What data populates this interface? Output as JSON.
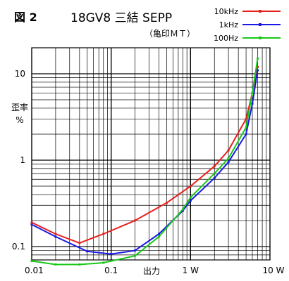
{
  "figure_label": "図 2",
  "title": "18GV8 三結 SEPP",
  "subtitle": "（亀印ＭＴ）",
  "colors": {
    "red": "#e8201a",
    "blue": "#1a1ae8",
    "green": "#18c818",
    "grid": "#000000"
  },
  "chart_data": {
    "type": "line",
    "xscale": "log",
    "yscale": "log",
    "xlim": [
      0.01,
      10
    ],
    "ylim": [
      0.07,
      20
    ],
    "grid": true,
    "legend_position": "top-right",
    "xlabel": "出力",
    "ylabel": "歪率 %",
    "x_ticks": [
      "0.01",
      "0.1",
      "1 W",
      "10 W"
    ],
    "y_ticks": [
      "0.1",
      "1",
      "10"
    ],
    "series": [
      {
        "name": "10kHz",
        "color": "#e8201a",
        "x": [
          0.01,
          0.02,
          0.04,
          0.08,
          0.2,
          0.5,
          1.0,
          2.0,
          3.0,
          5.0,
          6.0,
          7.0
        ],
        "y": [
          0.19,
          0.14,
          0.11,
          0.14,
          0.2,
          0.32,
          0.5,
          0.85,
          1.3,
          3.0,
          6.0,
          12.0
        ]
      },
      {
        "name": "1kHz",
        "color": "#1a1ae8",
        "x": [
          0.01,
          0.02,
          0.05,
          0.1,
          0.2,
          0.4,
          0.8,
          1.0,
          2.0,
          3.0,
          5.0,
          6.0,
          7.0
        ],
        "y": [
          0.18,
          0.13,
          0.088,
          0.082,
          0.09,
          0.14,
          0.26,
          0.34,
          0.62,
          0.95,
          2.0,
          4.5,
          11.0
        ]
      },
      {
        "name": "100Hz",
        "color": "#18c818",
        "x": [
          0.01,
          0.02,
          0.04,
          0.08,
          0.2,
          0.4,
          0.8,
          1.0,
          2.0,
          3.0,
          5.0,
          6.0,
          7.0
        ],
        "y": [
          0.068,
          0.062,
          0.062,
          0.065,
          0.078,
          0.13,
          0.27,
          0.37,
          0.7,
          1.05,
          2.4,
          6.0,
          15.0
        ]
      }
    ]
  }
}
